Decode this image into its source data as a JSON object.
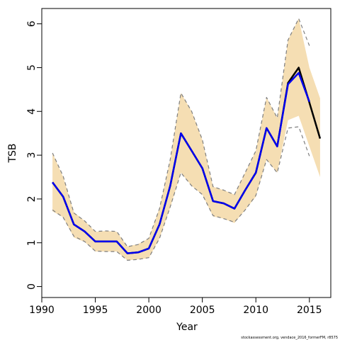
{
  "colors": {
    "band": "#f5deb3",
    "bound": "#7f7f7f",
    "estimate": "#0000ee",
    "retro": "#000000"
  },
  "chart_data": {
    "type": "line",
    "xlabel": "Year",
    "ylabel": "TSB",
    "xlim": [
      1990,
      2017
    ],
    "ylim": [
      -0.25,
      6.35
    ],
    "x_ticks": [
      "1990",
      "1995",
      "2000",
      "2005",
      "2010",
      "2015"
    ],
    "y_ticks": [
      "0",
      "1",
      "2",
      "3",
      "4",
      "5",
      "6"
    ],
    "grid": false,
    "footnote": "stockassessment.org, vendace_2016_formerFM, r8575",
    "band": {
      "x": [
        1991,
        1992,
        1993,
        1994,
        1995,
        1996,
        1997,
        1998,
        1999,
        2000,
        2001,
        2002,
        2003,
        2004,
        2005,
        2006,
        2007,
        2008,
        2009,
        2010,
        2011,
        2012,
        2013,
        2014,
        2015,
        2016
      ],
      "lower": [
        1.72,
        1.58,
        1.12,
        1.02,
        0.8,
        0.8,
        0.8,
        0.6,
        0.62,
        0.65,
        1.1,
        1.8,
        2.6,
        2.3,
        2.1,
        1.6,
        1.55,
        1.45,
        1.75,
        2.05,
        2.9,
        2.6,
        3.8,
        3.9,
        3.2,
        2.5
      ],
      "upper": [
        3.05,
        2.5,
        1.7,
        1.5,
        1.25,
        1.27,
        1.25,
        0.92,
        0.97,
        1.1,
        1.8,
        2.9,
        4.42,
        4.0,
        3.35,
        2.28,
        2.2,
        2.1,
        2.6,
        3.1,
        4.32,
        3.85,
        5.63,
        6.12,
        5.0,
        4.3
      ]
    },
    "series": [
      {
        "color": "#000000",
        "dash": "none",
        "x": [
          1991,
          1992,
          1993,
          1994,
          1995,
          1996,
          1997,
          1998,
          1999,
          2000,
          2001,
          2002,
          2003,
          2004,
          2005,
          2006,
          2007,
          2008,
          2009,
          2010,
          2011,
          2012,
          2013,
          2014,
          2015,
          2016
        ],
        "y": [
          2.38,
          2.05,
          1.42,
          1.26,
          1.03,
          1.03,
          1.03,
          0.76,
          0.78,
          0.87,
          1.42,
          2.3,
          3.5,
          3.1,
          2.7,
          1.95,
          1.9,
          1.78,
          2.2,
          2.6,
          3.62,
          3.2,
          4.65,
          5.0,
          4.2,
          3.38
        ]
      },
      {
        "color": "#7f7f7f",
        "dash": "dashed",
        "x": [
          1991,
          1992,
          1993,
          1994,
          1995,
          1996,
          1997,
          1998,
          1999,
          2000,
          2001,
          2002,
          2003,
          2004,
          2005,
          2006,
          2007,
          2008,
          2009,
          2010,
          2011,
          2012,
          2013,
          2014,
          2015
        ],
        "y": [
          3.05,
          2.52,
          1.68,
          1.5,
          1.26,
          1.27,
          1.26,
          0.91,
          0.96,
          1.1,
          1.78,
          2.9,
          4.42,
          4.0,
          3.35,
          2.28,
          2.2,
          2.1,
          2.6,
          3.1,
          4.32,
          3.85,
          5.63,
          6.12,
          5.5
        ]
      },
      {
        "color": "#7f7f7f",
        "dash": "dashed",
        "x": [
          1991,
          1992,
          1993,
          1994,
          1995,
          1996,
          1997,
          1998,
          1999,
          2000,
          2001,
          2002,
          2003,
          2004,
          2005,
          2006,
          2007,
          2008,
          2009,
          2010,
          2011,
          2012,
          2013,
          2014,
          2015
        ],
        "y": [
          1.75,
          1.58,
          1.15,
          1.03,
          0.81,
          0.8,
          0.8,
          0.6,
          0.62,
          0.66,
          1.1,
          1.82,
          2.6,
          2.3,
          2.1,
          1.62,
          1.55,
          1.47,
          1.75,
          2.08,
          2.9,
          2.6,
          3.62,
          3.65,
          2.98
        ]
      },
      {
        "color": "#0000ee",
        "dash": "none",
        "x": [
          1991,
          1992,
          1993,
          1994,
          1995,
          1996,
          1997,
          1998,
          1999,
          2000,
          2001,
          2002,
          2003,
          2004,
          2005,
          2006,
          2007,
          2008,
          2009,
          2010,
          2011,
          2012,
          2013,
          2014,
          2015
        ],
        "y": [
          2.38,
          2.05,
          1.42,
          1.26,
          1.03,
          1.03,
          1.03,
          0.76,
          0.78,
          0.87,
          1.42,
          2.3,
          3.5,
          3.1,
          2.7,
          1.95,
          1.9,
          1.78,
          2.2,
          2.6,
          3.62,
          3.2,
          4.62,
          4.88,
          4.22
        ]
      }
    ]
  }
}
